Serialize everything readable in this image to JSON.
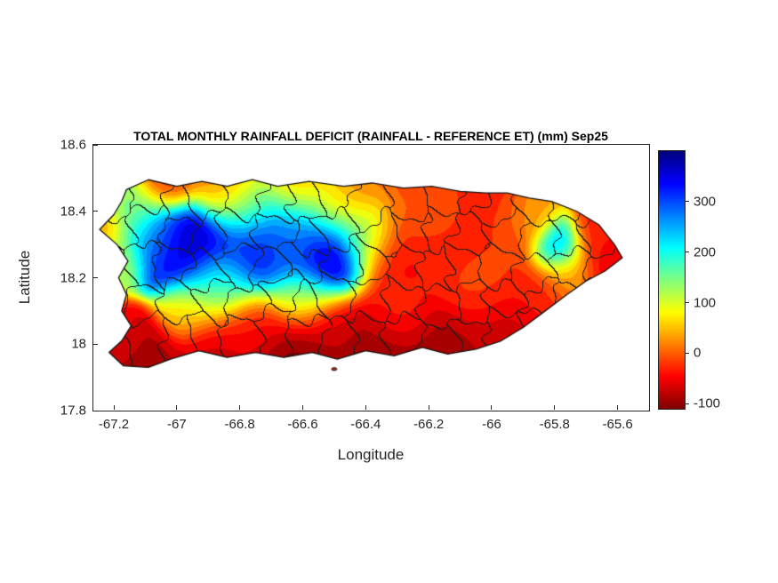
{
  "chart_data": {
    "type": "heatmap",
    "title": "TOTAL MONTHLY RAINFALL DEFICIT (RAINFALL - REFERENCE ET) (mm) Sep25",
    "xlabel": "Longitude",
    "ylabel": "Latitude",
    "units": "mm",
    "month": "Sep25",
    "region": "Puerto Rico",
    "xlim": [
      -67.265,
      -65.5
    ],
    "ylim": [
      17.8,
      18.6
    ],
    "band_step": 20,
    "x_ticks": [
      {
        "value": -67.2,
        "label": "-67.2"
      },
      {
        "value": -67.0,
        "label": "-67"
      },
      {
        "value": -66.8,
        "label": "-66.8"
      },
      {
        "value": -66.6,
        "label": "-66.6"
      },
      {
        "value": -66.4,
        "label": "-66.4"
      },
      {
        "value": -66.2,
        "label": "-66.2"
      },
      {
        "value": -66.0,
        "label": "-66"
      },
      {
        "value": -65.8,
        "label": "-65.8"
      },
      {
        "value": -65.6,
        "label": "-65.6"
      }
    ],
    "y_ticks": [
      {
        "value": 18.6,
        "label": "18.6"
      },
      {
        "value": 18.4,
        "label": "18.4"
      },
      {
        "value": 18.2,
        "label": "18.2"
      },
      {
        "value": 18.0,
        "label": "18"
      },
      {
        "value": 17.8,
        "label": "17.8"
      }
    ],
    "colorbar": {
      "colormap": "jet-reversed",
      "vmin": -110,
      "vmax": 400,
      "ticks": [
        300,
        200,
        100,
        0,
        -100
      ],
      "labels": [
        "300",
        "200",
        "100",
        "0",
        "-100"
      ]
    },
    "coastline": [
      [
        -67.16,
        18.465
      ],
      [
        -67.09,
        18.495
      ],
      [
        -67.0,
        18.475
      ],
      [
        -66.92,
        18.49
      ],
      [
        -66.84,
        18.475
      ],
      [
        -66.76,
        18.495
      ],
      [
        -66.68,
        18.475
      ],
      [
        -66.58,
        18.49
      ],
      [
        -66.47,
        18.475
      ],
      [
        -66.38,
        18.485
      ],
      [
        -66.28,
        18.47
      ],
      [
        -66.19,
        18.475
      ],
      [
        -66.1,
        18.46
      ],
      [
        -66.02,
        18.455
      ],
      [
        -65.95,
        18.455
      ],
      [
        -65.88,
        18.44
      ],
      [
        -65.81,
        18.43
      ],
      [
        -65.73,
        18.4
      ],
      [
        -65.66,
        18.36
      ],
      [
        -65.61,
        18.3
      ],
      [
        -65.585,
        18.26
      ],
      [
        -65.64,
        18.22
      ],
      [
        -65.7,
        18.19
      ],
      [
        -65.76,
        18.15
      ],
      [
        -65.83,
        18.1
      ],
      [
        -65.9,
        18.05
      ],
      [
        -65.97,
        18.01
      ],
      [
        -66.05,
        17.985
      ],
      [
        -66.14,
        17.97
      ],
      [
        -66.22,
        17.99
      ],
      [
        -66.31,
        17.965
      ],
      [
        -66.4,
        17.98
      ],
      [
        -66.49,
        17.955
      ],
      [
        -66.57,
        17.975
      ],
      [
        -66.66,
        17.96
      ],
      [
        -66.75,
        17.975
      ],
      [
        -66.84,
        17.96
      ],
      [
        -66.93,
        17.98
      ],
      [
        -67.02,
        17.955
      ],
      [
        -67.09,
        17.93
      ],
      [
        -67.17,
        17.935
      ],
      [
        -67.215,
        17.975
      ],
      [
        -67.175,
        18.01
      ],
      [
        -67.145,
        18.055
      ],
      [
        -67.175,
        18.1
      ],
      [
        -67.16,
        18.15
      ],
      [
        -67.185,
        18.2
      ],
      [
        -67.155,
        18.25
      ],
      [
        -67.19,
        18.3
      ],
      [
        -67.245,
        18.345
      ],
      [
        -67.2,
        18.39
      ],
      [
        -67.175,
        18.43
      ]
    ],
    "field_points": [
      [
        -66.97,
        18.285,
        400,
        0.075
      ],
      [
        -66.52,
        18.26,
        400,
        0.07
      ],
      [
        -66.74,
        18.305,
        340,
        0.09
      ],
      [
        -67.06,
        18.31,
        260,
        0.06
      ],
      [
        -66.62,
        18.33,
        240,
        0.07
      ],
      [
        -66.4,
        18.34,
        150,
        0.06
      ],
      [
        -67.14,
        18.4,
        140,
        0.06
      ],
      [
        -67.19,
        18.25,
        110,
        0.05
      ],
      [
        -66.88,
        18.17,
        150,
        0.07
      ],
      [
        -66.6,
        18.14,
        110,
        0.06
      ],
      [
        -67.24,
        18.35,
        20,
        0.04
      ],
      [
        -66.78,
        18.42,
        100,
        0.06
      ],
      [
        -66.5,
        18.42,
        80,
        0.06
      ],
      [
        -67.03,
        18.485,
        -30,
        0.05
      ],
      [
        -66.85,
        18.48,
        10,
        0.06
      ],
      [
        -66.63,
        18.475,
        40,
        0.06
      ],
      [
        -66.42,
        18.47,
        10,
        0.06
      ],
      [
        -66.2,
        18.465,
        -20,
        0.07
      ],
      [
        -66.02,
        18.45,
        -30,
        0.06
      ],
      [
        -66.3,
        18.27,
        -50,
        0.08
      ],
      [
        -66.14,
        18.3,
        -30,
        0.08
      ],
      [
        -66.22,
        18.4,
        20,
        0.06
      ],
      [
        -65.97,
        18.33,
        -20,
        0.07
      ],
      [
        -66.05,
        18.18,
        -10,
        0.07
      ],
      [
        -65.79,
        18.29,
        270,
        0.045
      ],
      [
        -65.88,
        18.38,
        40,
        0.05
      ],
      [
        -65.66,
        18.33,
        -30,
        0.05
      ],
      [
        -65.62,
        18.24,
        -60,
        0.06
      ],
      [
        -65.85,
        18.15,
        -30,
        0.06
      ],
      [
        -65.75,
        18.21,
        40,
        0.05
      ],
      [
        -67.12,
        17.96,
        -90,
        0.07
      ],
      [
        -66.88,
        17.99,
        -70,
        0.07
      ],
      [
        -66.62,
        17.965,
        -110,
        0.08
      ],
      [
        -66.38,
        17.985,
        -100,
        0.08
      ],
      [
        -66.15,
        17.99,
        -90,
        0.08
      ],
      [
        -65.96,
        18.04,
        -70,
        0.07
      ],
      [
        -67.2,
        18.03,
        -40,
        0.05
      ],
      [
        -66.5,
        18.05,
        -60,
        0.06
      ],
      [
        -66.75,
        18.05,
        -40,
        0.06
      ],
      [
        -66.97,
        18.1,
        60,
        0.05
      ],
      [
        -66.3,
        18.1,
        -20,
        0.06
      ]
    ],
    "islet": {
      "lon": -66.5,
      "lat": 17.925
    },
    "boundaries": {
      "seed": 11,
      "rows": [
        18.03,
        18.13,
        18.23,
        18.33,
        18.43
      ],
      "cols": 16,
      "lon_start": -67.21,
      "lon_step": 0.104,
      "jitter": 0.06
    }
  },
  "colors": {
    "axis": "#262626",
    "title": "#000000",
    "boundary_lines": "#1e1e1e",
    "coast_outline": "#111111",
    "background": "#ffffff"
  }
}
